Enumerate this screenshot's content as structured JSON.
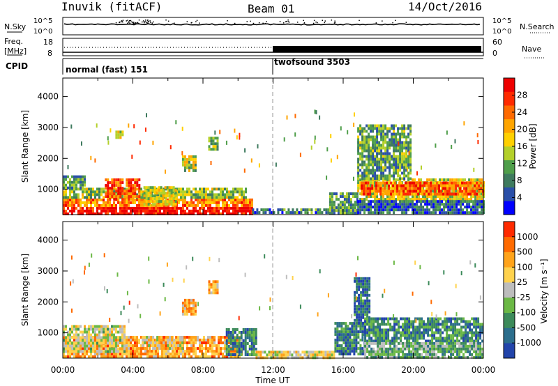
{
  "header": {
    "station": "Inuvik (fitACF)",
    "beam": "Beam 01",
    "date": "14/Oct/2016"
  },
  "strip_nsky": {
    "label": "N.Sky",
    "right_label": "N.Search",
    "left_ticks": [
      "10^5",
      "10^0"
    ],
    "right_ticks": [
      "10^5",
      "10^0"
    ]
  },
  "strip_freq": {
    "label_line1": "Freq.",
    "label_line2": "[MHz]",
    "right_label": "Nave",
    "left_ticks": [
      "18",
      "8"
    ],
    "right_ticks": [
      "60",
      "0"
    ]
  },
  "strip_cpid": {
    "label": "CPID",
    "segments": [
      {
        "text": "normal (fast) 151",
        "start_hour": 0
      },
      {
        "text": "twofsound 3503",
        "start_hour": 12
      }
    ]
  },
  "chart_data": [
    {
      "type": "heatmap",
      "title": "",
      "xlabel": "Time UT",
      "ylabel": "Slant Range [km]",
      "x_ticks": [
        "00:00",
        "04:00",
        "08:00",
        "12:00",
        "16:00",
        "20:00",
        "00:00"
      ],
      "y_ticks": [
        "1000",
        "2000",
        "3000",
        "4000"
      ],
      "xlim": [
        0,
        24
      ],
      "ylim": [
        180,
        4600
      ],
      "colorbar": {
        "label": "Power [dB]",
        "ticks": [
          "4",
          "8",
          "12",
          "16",
          "20",
          "24",
          "28"
        ],
        "colors": [
          "#0000ff",
          "#2a4fa8",
          "#3e7a5e",
          "#4f9e4a",
          "#b4d02a",
          "#ffd000",
          "#ffa500",
          "#ff6a00",
          "#ff2a00",
          "#ee0000"
        ]
      },
      "regions": [
        {
          "t0": 0.0,
          "t1": 10.8,
          "r0": 180,
          "r1": 430,
          "v": 0.95
        },
        {
          "t0": 0.0,
          "t1": 10.8,
          "r0": 430,
          "r1": 700,
          "v": 0.72
        },
        {
          "t0": 0.0,
          "t1": 10.5,
          "r0": 700,
          "r1": 1050,
          "v": 0.42
        },
        {
          "t0": 2.4,
          "t1": 4.4,
          "r0": 700,
          "r1": 1350,
          "v": 0.8
        },
        {
          "t0": 0.0,
          "t1": 1.2,
          "r0": 1050,
          "r1": 1450,
          "v": 0.3
        },
        {
          "t0": 4.6,
          "t1": 6.5,
          "r0": 500,
          "r1": 1100,
          "v": 0.5
        },
        {
          "t0": 6.8,
          "t1": 7.6,
          "r0": 1600,
          "r1": 2100,
          "v": 0.45
        },
        {
          "t0": 8.3,
          "t1": 8.8,
          "r0": 2300,
          "r1": 2700,
          "v": 0.4
        },
        {
          "t0": 3.0,
          "t1": 3.4,
          "r0": 2650,
          "r1": 2900,
          "v": 0.5
        },
        {
          "t0": 10.8,
          "t1": 15.2,
          "r0": 200,
          "r1": 380,
          "v": 0.25
        },
        {
          "t0": 15.2,
          "t1": 16.8,
          "r0": 250,
          "r1": 900,
          "v": 0.3
        },
        {
          "t0": 16.8,
          "t1": 24.0,
          "r0": 650,
          "r1": 1350,
          "v": 0.5
        },
        {
          "t0": 17.0,
          "t1": 24.0,
          "r0": 850,
          "r1": 1250,
          "v": 0.78
        },
        {
          "t0": 16.8,
          "t1": 19.8,
          "r0": 1350,
          "r1": 3100,
          "v": 0.32
        },
        {
          "t0": 16.8,
          "t1": 24.0,
          "r0": 200,
          "r1": 650,
          "v": 0.2
        }
      ]
    },
    {
      "type": "heatmap",
      "title": "",
      "xlabel": "Time UT",
      "ylabel": "Slant Range [km]",
      "x_ticks": [
        "00:00",
        "04:00",
        "08:00",
        "12:00",
        "16:00",
        "20:00",
        "00:00"
      ],
      "y_ticks": [
        "1000",
        "2000",
        "3000",
        "4000"
      ],
      "xlim": [
        0,
        24
      ],
      "ylim": [
        180,
        4600
      ],
      "colorbar": {
        "label": "Velocity [m s⁻¹]",
        "ticks": [
          "1000",
          "500",
          "100",
          "25",
          "-25",
          "-100",
          "-500",
          "-1000"
        ],
        "colors": [
          "#2244aa",
          "#2c6e8c",
          "#3c8a5a",
          "#6bb845",
          "#bdbdbd",
          "#ffd24d",
          "#ffa31a",
          "#ff6a00",
          "#ff2a00"
        ]
      },
      "regions": [
        {
          "t0": 0.0,
          "t1": 10.2,
          "r0": 180,
          "r1": 900,
          "v": 0.72
        },
        {
          "t0": 0.0,
          "t1": 3.5,
          "r0": 400,
          "r1": 1250,
          "v": 0.5
        },
        {
          "t0": 4.5,
          "t1": 6.8,
          "r0": 450,
          "r1": 900,
          "v": 0.62
        },
        {
          "t0": 6.8,
          "t1": 7.6,
          "r0": 1600,
          "r1": 2100,
          "v": 0.68
        },
        {
          "t0": 8.3,
          "t1": 8.8,
          "r0": 2300,
          "r1": 2700,
          "v": 0.68
        },
        {
          "t0": 9.3,
          "t1": 11.0,
          "r0": 250,
          "r1": 1150,
          "v": 0.2
        },
        {
          "t0": 11.0,
          "t1": 15.5,
          "r0": 180,
          "r1": 420,
          "v": 0.55
        },
        {
          "t0": 15.5,
          "t1": 17.2,
          "r0": 300,
          "r1": 1350,
          "v": 0.18
        },
        {
          "t0": 16.6,
          "t1": 17.5,
          "r0": 1350,
          "r1": 2800,
          "v": 0.15
        },
        {
          "t0": 17.2,
          "t1": 24.0,
          "r0": 700,
          "r1": 1500,
          "v": 0.24
        },
        {
          "t0": 17.2,
          "t1": 24.0,
          "r0": 200,
          "r1": 700,
          "v": 0.35
        }
      ]
    }
  ]
}
